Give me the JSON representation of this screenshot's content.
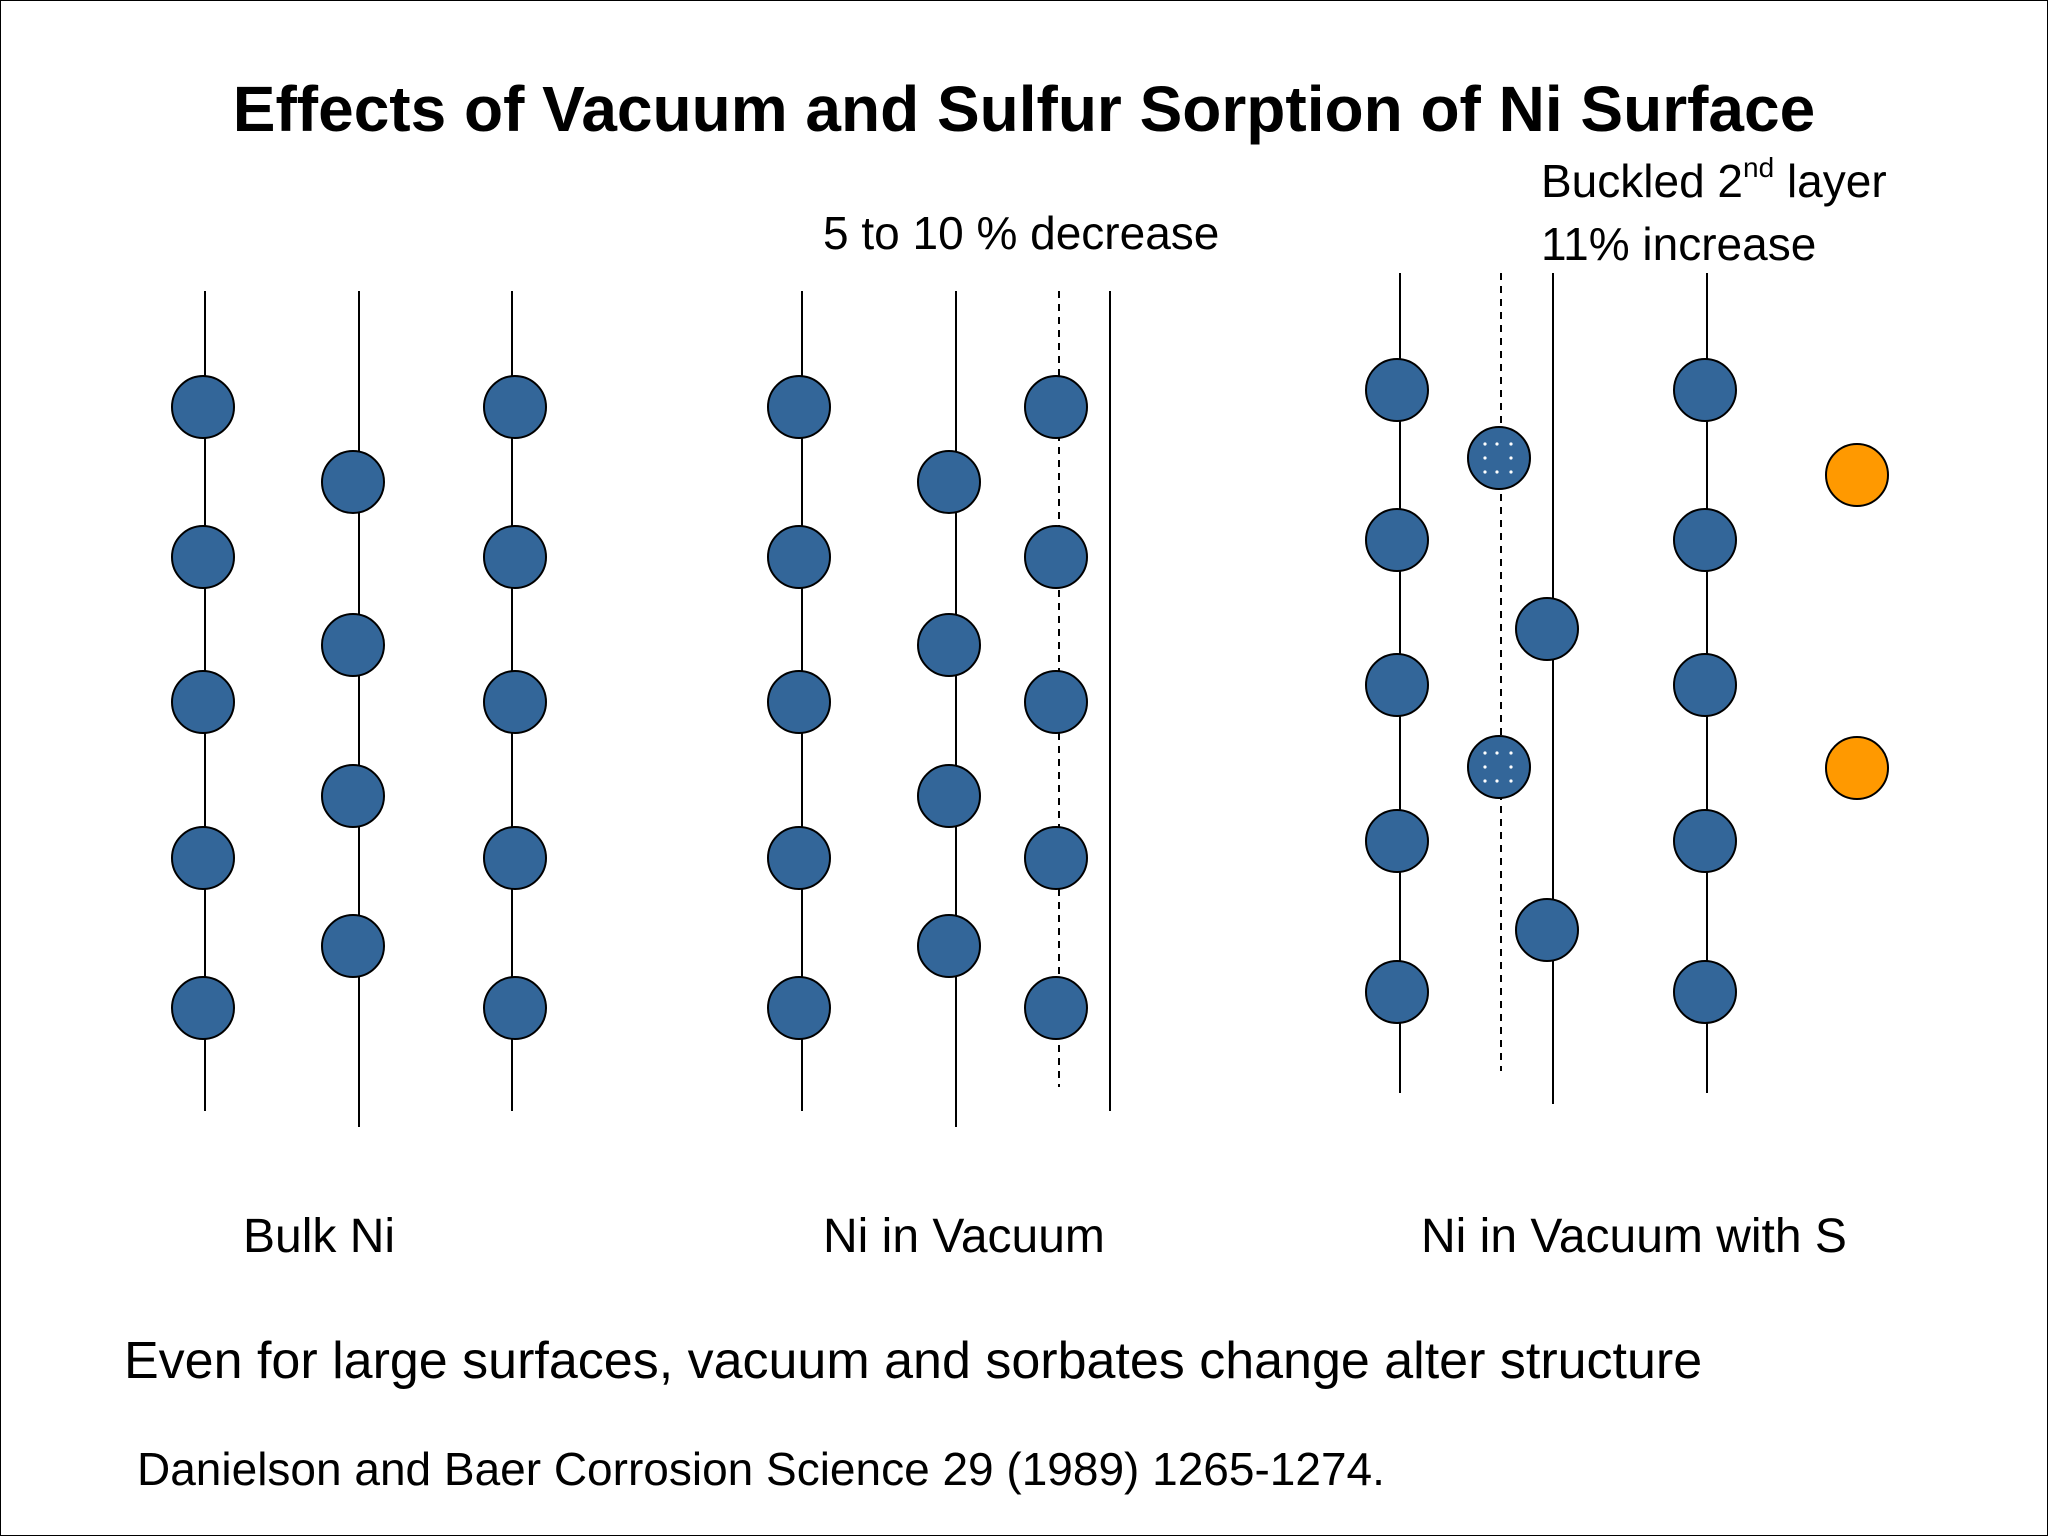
{
  "title": "Effects of Vacuum and Sulfur Sorption of Ni Surface",
  "annotations": {
    "vacuum_change": "5 to 10 % decrease",
    "buckled_prefix": "Buckled 2",
    "buckled_sup": "nd",
    "buckled_suffix": " layer",
    "increase": "11% increase"
  },
  "panels": [
    {
      "label": "Bulk Ni"
    },
    {
      "label": "Ni in Vacuum"
    },
    {
      "label": "Ni in Vacuum with S"
    }
  ],
  "conclusion": "Even for large surfaces, vacuum and sorbates change alter structure",
  "reference": "Danielson and Baer  Corrosion Science 29 (1989) 1265-1274.",
  "colors": {
    "nickel_atom": "#336699",
    "sulfur_atom": "#FF9900",
    "outline": "#000000"
  }
}
